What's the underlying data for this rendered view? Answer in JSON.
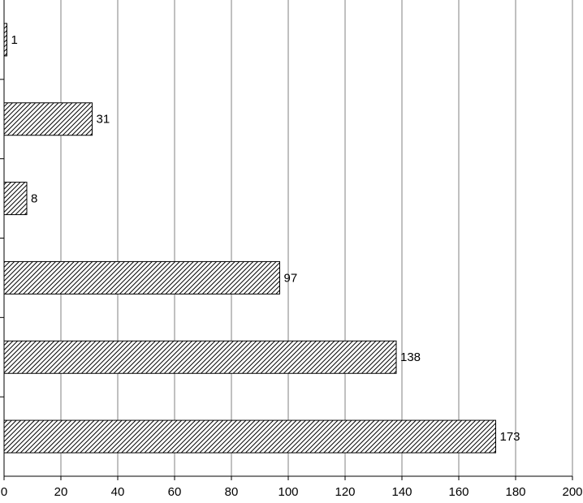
{
  "chart_data": {
    "type": "bar",
    "orientation": "horizontal",
    "categories": [
      null,
      null,
      null,
      null,
      null,
      null
    ],
    "values": [
      1,
      31,
      8,
      97,
      138,
      173
    ],
    "color": "#000000",
    "xlim": [
      0,
      200
    ],
    "xticks": [
      0,
      20,
      40,
      60,
      80,
      100,
      120,
      140,
      160,
      180,
      200
    ],
    "grid": true
  }
}
